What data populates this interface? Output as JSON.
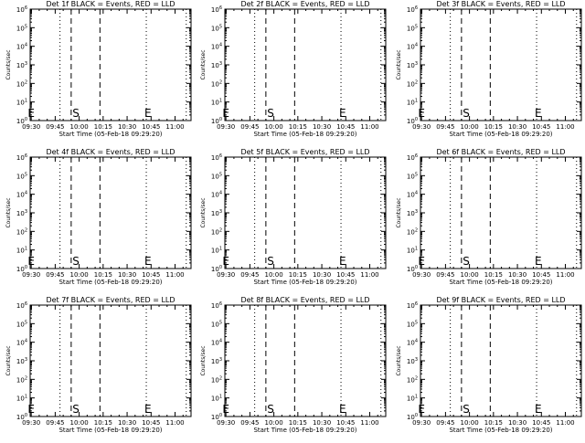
{
  "chart_data": [
    {
      "type": "line",
      "title": "Det 1f BLACK = Events, RED = LLD",
      "xlabel": "Start Time (05-Feb-18 09:29:20)",
      "ylabel": "Counts/sec",
      "x_ticks": [
        "09:30",
        "09:45",
        "10:00",
        "10:15",
        "10:30",
        "10:45",
        "11:00"
      ],
      "y_ticks": [
        "10^0",
        "10^1",
        "10^2",
        "10^3",
        "10^4",
        "10^5",
        "10^6"
      ],
      "y_scale": "log",
      "xlim": [
        "09:29:20",
        "11:10"
      ],
      "ylim": [
        1,
        1000000
      ],
      "markers": [
        {
          "label": "E",
          "time": "09:30"
        },
        {
          "label": "S",
          "time": "09:58"
        },
        {
          "label": "E",
          "time": "10:43"
        }
      ],
      "vlines": [
        {
          "time": "09:48",
          "style": "dotted"
        },
        {
          "time": "09:55",
          "style": "dashed"
        },
        {
          "time": "10:13",
          "style": "dashed"
        },
        {
          "time": "10:42",
          "style": "dotted"
        },
        {
          "time": "11:07",
          "style": "dotted"
        }
      ],
      "series": []
    },
    {
      "type": "line",
      "title": "Det 2f BLACK = Events, RED = LLD",
      "xlabel": "Start Time (05-Feb-18 09:29:20)",
      "ylabel": "Counts/sec",
      "x_ticks": [
        "09:30",
        "09:45",
        "10:00",
        "10:15",
        "10:30",
        "10:45",
        "11:00"
      ],
      "y_ticks": [
        "10^0",
        "10^1",
        "10^2",
        "10^3",
        "10^4",
        "10^5",
        "10^6"
      ],
      "y_scale": "log",
      "xlim": [
        "09:29:20",
        "11:10"
      ],
      "ylim": [
        1,
        1000000
      ],
      "markers": [
        {
          "label": "E",
          "time": "09:30"
        },
        {
          "label": "S",
          "time": "09:58"
        },
        {
          "label": "E",
          "time": "10:43"
        }
      ],
      "vlines": [
        {
          "time": "09:48",
          "style": "dotted"
        },
        {
          "time": "09:55",
          "style": "dashed"
        },
        {
          "time": "10:13",
          "style": "dashed"
        },
        {
          "time": "10:42",
          "style": "dotted"
        },
        {
          "time": "11:07",
          "style": "dotted"
        }
      ],
      "series": []
    },
    {
      "type": "line",
      "title": "Det 3f BLACK = Events, RED = LLD",
      "xlabel": "Start Time (05-Feb-18 09:29:20)",
      "ylabel": "Counts/sec",
      "x_ticks": [
        "09:30",
        "09:45",
        "10:00",
        "10:15",
        "10:30",
        "10:45",
        "11:00"
      ],
      "y_ticks": [
        "10^0",
        "10^1",
        "10^2",
        "10^3",
        "10^4",
        "10^5",
        "10^6"
      ],
      "y_scale": "log",
      "xlim": [
        "09:29:20",
        "11:10"
      ],
      "ylim": [
        1,
        1000000
      ],
      "markers": [
        {
          "label": "E",
          "time": "09:30"
        },
        {
          "label": "S",
          "time": "09:58"
        },
        {
          "label": "E",
          "time": "10:43"
        }
      ],
      "vlines": [
        {
          "time": "09:48",
          "style": "dotted"
        },
        {
          "time": "09:55",
          "style": "dashed"
        },
        {
          "time": "10:13",
          "style": "dashed"
        },
        {
          "time": "10:42",
          "style": "dotted"
        },
        {
          "time": "11:07",
          "style": "dotted"
        }
      ],
      "series": []
    },
    {
      "type": "line",
      "title": "Det 4f BLACK = Events, RED = LLD",
      "xlabel": "Start Time (05-Feb-18 09:29:20)",
      "ylabel": "Counts/sec",
      "x_ticks": [
        "09:30",
        "09:45",
        "10:00",
        "10:15",
        "10:30",
        "10:45",
        "11:00"
      ],
      "y_ticks": [
        "10^0",
        "10^1",
        "10^2",
        "10^3",
        "10^4",
        "10^5",
        "10^6"
      ],
      "y_scale": "log",
      "xlim": [
        "09:29:20",
        "11:10"
      ],
      "ylim": [
        1,
        1000000
      ],
      "markers": [
        {
          "label": "E",
          "time": "09:30"
        },
        {
          "label": "S",
          "time": "09:58"
        },
        {
          "label": "E",
          "time": "10:43"
        }
      ],
      "vlines": [
        {
          "time": "09:48",
          "style": "dotted"
        },
        {
          "time": "09:55",
          "style": "dashed"
        },
        {
          "time": "10:13",
          "style": "dashed"
        },
        {
          "time": "10:42",
          "style": "dotted"
        },
        {
          "time": "11:07",
          "style": "dotted"
        }
      ],
      "series": []
    },
    {
      "type": "line",
      "title": "Det 5f BLACK = Events, RED = LLD",
      "xlabel": "Start Time (05-Feb-18 09:29:20)",
      "ylabel": "Counts/sec",
      "x_ticks": [
        "09:30",
        "09:45",
        "10:00",
        "10:15",
        "10:30",
        "10:45",
        "11:00"
      ],
      "y_ticks": [
        "10^0",
        "10^1",
        "10^2",
        "10^3",
        "10^4",
        "10^5",
        "10^6"
      ],
      "y_scale": "log",
      "xlim": [
        "09:29:20",
        "11:10"
      ],
      "ylim": [
        1,
        1000000
      ],
      "markers": [
        {
          "label": "E",
          "time": "09:30"
        },
        {
          "label": "S",
          "time": "09:58"
        },
        {
          "label": "E",
          "time": "10:43"
        }
      ],
      "vlines": [
        {
          "time": "09:48",
          "style": "dotted"
        },
        {
          "time": "09:55",
          "style": "dashed"
        },
        {
          "time": "10:13",
          "style": "dashed"
        },
        {
          "time": "10:42",
          "style": "dotted"
        },
        {
          "time": "11:07",
          "style": "dotted"
        }
      ],
      "series": []
    },
    {
      "type": "line",
      "title": "Det 6f BLACK = Events, RED = LLD",
      "xlabel": "Start Time (05-Feb-18 09:29:20)",
      "ylabel": "Counts/sec",
      "x_ticks": [
        "09:30",
        "09:45",
        "10:00",
        "10:15",
        "10:30",
        "10:45",
        "11:00"
      ],
      "y_ticks": [
        "10^0",
        "10^1",
        "10^2",
        "10^3",
        "10^4",
        "10^5",
        "10^6"
      ],
      "y_scale": "log",
      "xlim": [
        "09:29:20",
        "11:10"
      ],
      "ylim": [
        1,
        1000000
      ],
      "markers": [
        {
          "label": "E",
          "time": "09:30"
        },
        {
          "label": "S",
          "time": "09:58"
        },
        {
          "label": "E",
          "time": "10:43"
        }
      ],
      "vlines": [
        {
          "time": "09:48",
          "style": "dotted"
        },
        {
          "time": "09:55",
          "style": "dashed"
        },
        {
          "time": "10:13",
          "style": "dashed"
        },
        {
          "time": "10:42",
          "style": "dotted"
        },
        {
          "time": "11:07",
          "style": "dotted"
        }
      ],
      "series": []
    },
    {
      "type": "line",
      "title": "Det 7f BLACK = Events, RED = LLD",
      "xlabel": "Start Time (05-Feb-18 09:29:20)",
      "ylabel": "Counts/sec",
      "x_ticks": [
        "09:30",
        "09:45",
        "10:00",
        "10:15",
        "10:30",
        "10:45",
        "11:00"
      ],
      "y_ticks": [
        "10^0",
        "10^1",
        "10^2",
        "10^3",
        "10^4",
        "10^5",
        "10^6"
      ],
      "y_scale": "log",
      "xlim": [
        "09:29:20",
        "11:10"
      ],
      "ylim": [
        1,
        1000000
      ],
      "markers": [
        {
          "label": "E",
          "time": "09:30"
        },
        {
          "label": "S",
          "time": "09:58"
        },
        {
          "label": "E",
          "time": "10:43"
        }
      ],
      "vlines": [
        {
          "time": "09:48",
          "style": "dotted"
        },
        {
          "time": "09:55",
          "style": "dashed"
        },
        {
          "time": "10:13",
          "style": "dashed"
        },
        {
          "time": "10:42",
          "style": "dotted"
        },
        {
          "time": "11:07",
          "style": "dotted"
        }
      ],
      "series": []
    },
    {
      "type": "line",
      "title": "Det 8f BLACK = Events, RED = LLD",
      "xlabel": "Start Time (05-Feb-18 09:29:20)",
      "ylabel": "Counts/sec",
      "x_ticks": [
        "09:30",
        "09:45",
        "10:00",
        "10:15",
        "10:30",
        "10:45",
        "11:00"
      ],
      "y_ticks": [
        "10^0",
        "10^1",
        "10^2",
        "10^3",
        "10^4",
        "10^5",
        "10^6"
      ],
      "y_scale": "log",
      "xlim": [
        "09:29:20",
        "11:10"
      ],
      "ylim": [
        1,
        1000000
      ],
      "markers": [
        {
          "label": "E",
          "time": "09:30"
        },
        {
          "label": "S",
          "time": "09:58"
        },
        {
          "label": "E",
          "time": "10:43"
        }
      ],
      "vlines": [
        {
          "time": "09:48",
          "style": "dotted"
        },
        {
          "time": "09:55",
          "style": "dashed"
        },
        {
          "time": "10:13",
          "style": "dashed"
        },
        {
          "time": "10:42",
          "style": "dotted"
        },
        {
          "time": "11:07",
          "style": "dotted"
        }
      ],
      "series": []
    },
    {
      "type": "line",
      "title": "Det 9f BLACK = Events, RED = LLD",
      "xlabel": "Start Time (05-Feb-18 09:29:20)",
      "ylabel": "Counts/sec",
      "x_ticks": [
        "09:30",
        "09:45",
        "10:00",
        "10:15",
        "10:30",
        "10:45",
        "11:00"
      ],
      "y_ticks": [
        "10^0",
        "10^1",
        "10^2",
        "10^3",
        "10^4",
        "10^5",
        "10^6"
      ],
      "y_scale": "log",
      "xlim": [
        "09:29:20",
        "11:10"
      ],
      "ylim": [
        1,
        1000000
      ],
      "markers": [
        {
          "label": "E",
          "time": "09:30"
        },
        {
          "label": "S",
          "time": "09:58"
        },
        {
          "label": "E",
          "time": "10:43"
        }
      ],
      "vlines": [
        {
          "time": "09:48",
          "style": "dotted"
        },
        {
          "time": "09:55",
          "style": "dashed"
        },
        {
          "time": "10:13",
          "style": "dashed"
        },
        {
          "time": "10:42",
          "style": "dotted"
        },
        {
          "time": "11:07",
          "style": "dotted"
        }
      ],
      "series": []
    }
  ],
  "colors": {
    "events": "#000000",
    "lld": "#ff0000",
    "background": "#ffffff"
  }
}
